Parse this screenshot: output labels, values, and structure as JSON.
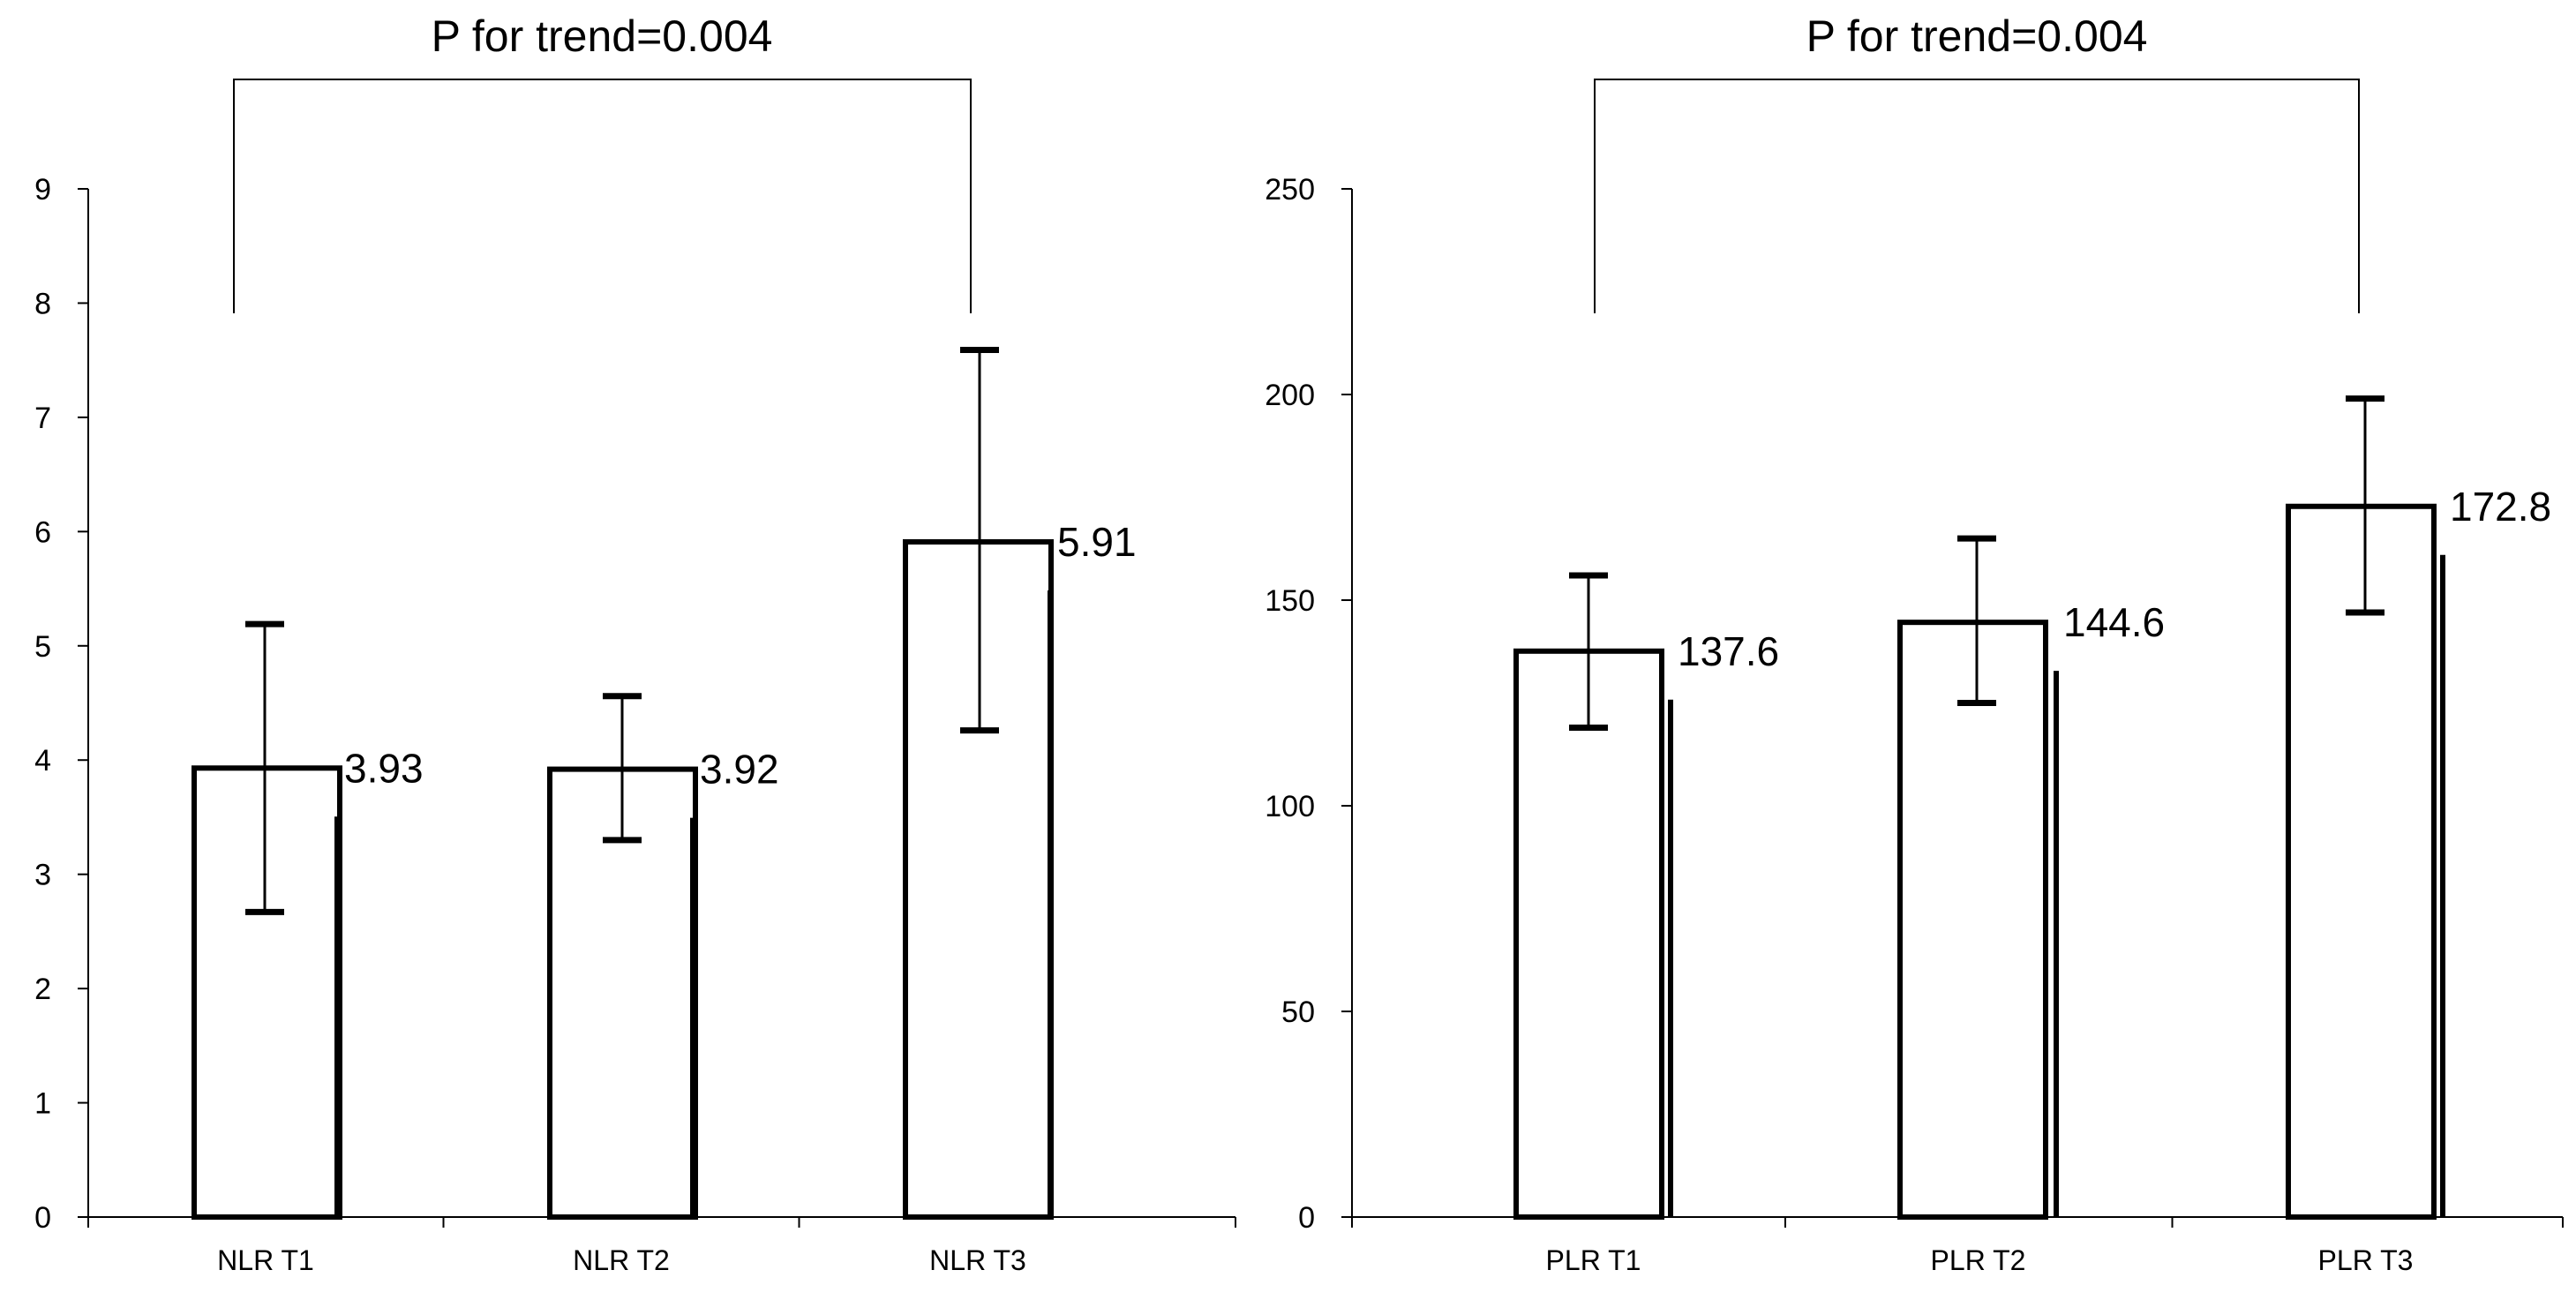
{
  "chart_data": [
    {
      "type": "bar",
      "categories": [
        "NLR T1",
        "NLR T2",
        "NLR T3"
      ],
      "values": [
        3.93,
        3.92,
        5.91
      ],
      "value_labels": [
        "3.93",
        "3.92",
        "5.91"
      ],
      "error_low": [
        2.67,
        3.3,
        4.26
      ],
      "error_high": [
        5.19,
        4.56,
        7.59
      ],
      "ylim": [
        0,
        9
      ],
      "yticks": [
        "0",
        "1",
        "2",
        "3",
        "4",
        "5",
        "6",
        "7",
        "8",
        "9"
      ],
      "trend_label": "P for trend=0.004",
      "trend_bracket": {
        "from": "NLR T1",
        "to": "NLR T3"
      },
      "grid": false,
      "bar_fill": "#ffffff",
      "line_color": "#000000"
    },
    {
      "type": "bar",
      "categories": [
        "PLR T1",
        "PLR T2",
        "PLR T3"
      ],
      "values": [
        137.6,
        144.6,
        172.8
      ],
      "value_labels": [
        "137.6",
        "144.6",
        "172.8"
      ],
      "error_low": [
        119,
        125,
        147
      ],
      "error_high": [
        156,
        165,
        199
      ],
      "ylim": [
        0,
        250
      ],
      "yticks": [
        "0",
        "50",
        "100",
        "150",
        "200",
        "250"
      ],
      "trend_label": "P for trend=0.004",
      "trend_bracket": {
        "from": "PLR T1",
        "to": "PLR T3"
      },
      "grid": false,
      "bar_fill": "#ffffff",
      "line_color": "#000000"
    }
  ]
}
